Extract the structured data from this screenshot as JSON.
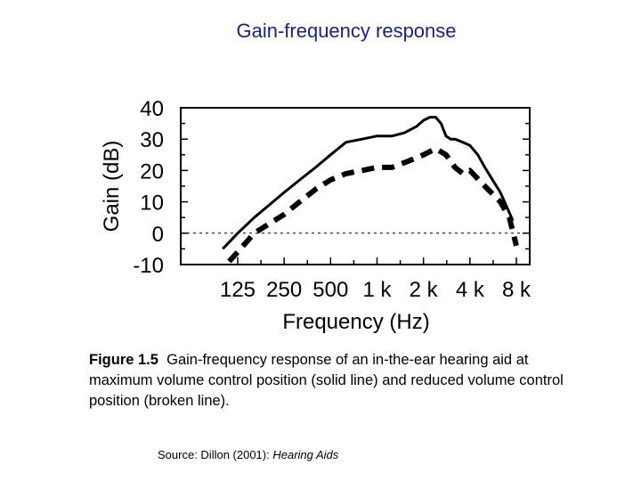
{
  "title": "Gain-frequency response",
  "chart_data": {
    "type": "line",
    "xlabel": "Frequency (Hz)",
    "ylabel": "Gain (dB)",
    "ylim": [
      -10,
      40
    ],
    "yticks": [
      -10,
      0,
      10,
      20,
      30,
      40
    ],
    "x_scale": "log",
    "xticks": [
      125,
      250,
      500,
      1000,
      2000,
      4000,
      8000
    ],
    "xtick_labels": [
      "125",
      "250",
      "500",
      "1 k",
      "2 k",
      "4 k",
      "8 k"
    ],
    "reference_line": 0,
    "grid": false,
    "series": [
      {
        "style": "solid",
        "x": [
          100,
          125,
          160,
          200,
          250,
          315,
          400,
          500,
          630,
          800,
          1000,
          1250,
          1500,
          1800,
          2000,
          2200,
          2400,
          2600,
          2800,
          3000,
          3200,
          3600,
          4000,
          4500,
          5000,
          6300,
          7600
        ],
        "y": [
          -5,
          0,
          5,
          9,
          13,
          17,
          21,
          25,
          29,
          30,
          31,
          31,
          32,
          34,
          36,
          37,
          37,
          35,
          31,
          30,
          30,
          29,
          28,
          25,
          21,
          13,
          4
        ]
      },
      {
        "style": "dashed",
        "x": [
          110,
          125,
          160,
          200,
          250,
          315,
          400,
          500,
          630,
          800,
          1000,
          1250,
          1600,
          2000,
          2400,
          2800,
          3200,
          3600,
          4000,
          5000,
          6300,
          7200,
          8000
        ],
        "y": [
          -9,
          -6,
          0,
          3,
          6,
          10,
          14,
          17,
          19,
          20,
          21,
          21,
          23,
          25,
          27,
          25,
          21,
          19,
          20,
          15,
          10,
          5,
          -4
        ]
      }
    ]
  },
  "caption": {
    "label": "Figure 1.5",
    "text": "Gain-frequency response of an in-the-ear hearing aid at maximum volume control position (solid line) and reduced volume control position (broken line)."
  },
  "source": {
    "prefix": "Source:  Dillon (2001): ",
    "book": "Hearing Aids"
  }
}
